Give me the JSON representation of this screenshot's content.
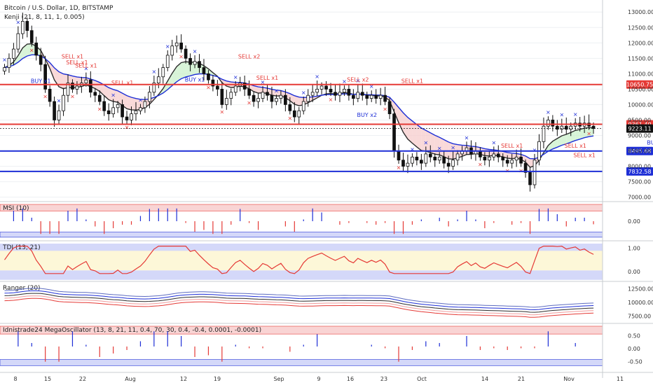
{
  "chart_data": {
    "type": "candlestick",
    "title": "Bitcoin / U.S. Dollar, 1D, BITSTAMP",
    "indicator_title": "Kenji (21, 8, 11, 1, 0.005)",
    "x_ticks": [
      "8",
      "15",
      "22",
      "Aug",
      "12",
      "19",
      "Sep",
      "9",
      "16",
      "23",
      "Oct",
      "14",
      "21",
      "Nov",
      "11"
    ],
    "main_y_ticks": [
      "13000.00",
      "12500.00",
      "12000.00",
      "11500.00",
      "11000.00",
      "10500.00",
      "10000.00",
      "9500.00",
      "9000.00",
      "8500.00",
      "8000.00",
      "7500.00",
      "7000.00"
    ],
    "price_range": [
      6900,
      13300
    ],
    "horizontal_levels": [
      {
        "label": "10650.75",
        "value": 10650.75,
        "color": "#e53935"
      },
      {
        "label": "9361.40",
        "value": 9361.4,
        "color": "#e53935"
      },
      {
        "label": "9223.11",
        "value": 9223.11,
        "color": "#111111"
      },
      {
        "label": "8495.68",
        "value": 8495.68,
        "color": "#1e2fd6"
      },
      {
        "label": "7832.58",
        "value": 7832.58,
        "color": "#1e2fd6"
      }
    ],
    "closes": [
      11200,
      11500,
      11800,
      12300,
      12700,
      12400,
      12000,
      11600,
      11300,
      10500,
      10100,
      9500,
      9800,
      10300,
      10700,
      10500,
      10600,
      10700,
      10800,
      10400,
      10300,
      10100,
      9800,
      9700,
      9900,
      10000,
      9600,
      9500,
      9700,
      9800,
      9900,
      10100,
      10400,
      10700,
      10900,
      11200,
      11600,
      11900,
      12000,
      11800,
      11500,
      11300,
      11400,
      11200,
      11000,
      10800,
      10600,
      10500,
      10000,
      10200,
      10400,
      10600,
      10700,
      10500,
      10300,
      10100,
      10200,
      10400,
      10300,
      10100,
      10200,
      10300,
      10000,
      9800,
      9600,
      9800,
      10100,
      10300,
      10400,
      10500,
      10600,
      10500,
      10400,
      10300,
      10400,
      10500,
      10300,
      10200,
      10400,
      10300,
      10200,
      10300,
      10200,
      10300,
      10100,
      9700,
      8500,
      8200,
      8000,
      8100,
      8300,
      8200,
      8100,
      8400,
      8300,
      8200,
      8300,
      8100,
      8000,
      8200,
      8400,
      8500,
      8600,
      8400,
      8500,
      8300,
      8200,
      8300,
      8400,
      8300,
      8200,
      8100,
      8200,
      8300,
      8100,
      7800,
      7400,
      8200,
      8800,
      9300,
      9500,
      9300,
      9200,
      9300,
      9200,
      9300,
      9400,
      9300,
      9400,
      9300,
      9223.11
    ],
    "signals": [
      {
        "text": "SELL x1",
        "day": 15,
        "price": 11500,
        "color": "#e53935"
      },
      {
        "text": "SELL x1",
        "day": 16,
        "price": 11300,
        "color": "#e53935"
      },
      {
        "text": "SELL x1",
        "day": 18,
        "price": 11200,
        "color": "#e53935"
      },
      {
        "text": "BUY x1",
        "day": 8,
        "price": 10700,
        "color": "#1e2fd6"
      },
      {
        "text": "SELL x1",
        "day": 26,
        "price": 10650,
        "color": "#e53935"
      },
      {
        "text": "SELL x2",
        "day": 54,
        "price": 11500,
        "color": "#e53935"
      },
      {
        "text": "SELL x1",
        "day": 58,
        "price": 10800,
        "color": "#e53935"
      },
      {
        "text": "BUY x1",
        "day": 42,
        "price": 10750,
        "color": "#1e2fd6"
      },
      {
        "text": "SELL x2",
        "day": 78,
        "price": 10750,
        "color": "#e53935"
      },
      {
        "text": "SELL x1",
        "day": 90,
        "price": 10700,
        "color": "#e53935"
      },
      {
        "text": "BUY x2",
        "day": 80,
        "price": 9600,
        "color": "#1e2fd6"
      },
      {
        "text": "SELL x1",
        "day": 112,
        "price": 8600,
        "color": "#e53935"
      },
      {
        "text": "SELL x1",
        "day": 126,
        "price": 8600,
        "color": "#e53935"
      },
      {
        "text": "SELL x1",
        "day": 128,
        "price": 8300,
        "color": "#e53935"
      },
      {
        "text": "BUY x1",
        "day": 144,
        "price": 8700,
        "color": "#1e2fd6"
      }
    ],
    "panels": [
      {
        "title": "MSI (10)",
        "y_ticks": [
          "0.00"
        ]
      },
      {
        "title": "TDI (13, 21)",
        "y_ticks": [
          "1.00",
          "0.00"
        ]
      },
      {
        "title": "Ranger (20)",
        "y_ticks": [
          "12500.00",
          "10000.00",
          "7500.00"
        ]
      },
      {
        "title": "Idnistrade24 MegaOscillator (13, 8, 21, 11, 0.4, 70, 30, 0.4, -0.4, 0.0001, -0.0001)",
        "y_ticks": [
          "0.50",
          "0.00",
          "-0.50"
        ]
      }
    ],
    "colors": {
      "up": "#ffffff",
      "down": "#111111",
      "sell": "#e53935",
      "buy": "#1e2fd6",
      "fast_band": "#2d2d2d",
      "slow_band": "#1e2fd6"
    }
  }
}
